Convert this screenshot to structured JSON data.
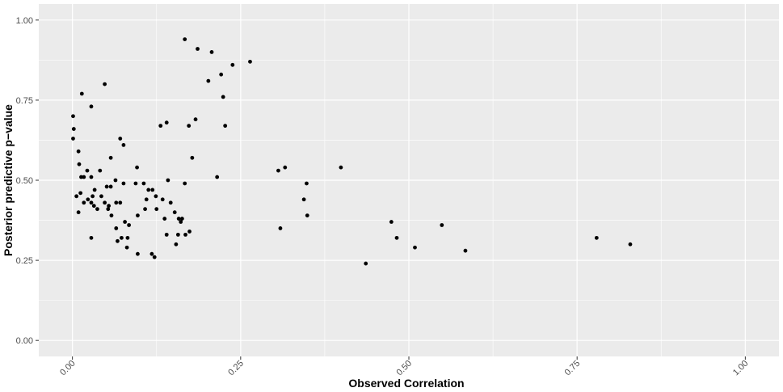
{
  "chart_data": {
    "type": "scatter",
    "title": "",
    "xlabel": "Observed Correlation",
    "ylabel": "Posterior predictive p−value",
    "xlim": [
      -0.05,
      1.05
    ],
    "ylim": [
      -0.05,
      1.05
    ],
    "x_ticks": [
      0.0,
      0.25,
      0.5,
      0.75,
      1.0
    ],
    "x_tick_labels": [
      "0.00",
      "0.25",
      "0.50",
      "0.75",
      "1.00"
    ],
    "y_ticks": [
      0.0,
      0.25,
      0.5,
      0.75,
      1.0
    ],
    "y_tick_labels": [
      "0.00",
      "0.25",
      "0.50",
      "0.75",
      "1.00"
    ],
    "grid": true,
    "colors": {
      "panel": "#ebebeb",
      "grid": "#ffffff",
      "point": "#000000"
    },
    "points": [
      {
        "x": 0.001,
        "y": 0.7
      },
      {
        "x": 0.002,
        "y": 0.66
      },
      {
        "x": 0.001,
        "y": 0.63
      },
      {
        "x": 0.009,
        "y": 0.59
      },
      {
        "x": 0.01,
        "y": 0.55
      },
      {
        "x": 0.014,
        "y": 0.77
      },
      {
        "x": 0.013,
        "y": 0.51
      },
      {
        "x": 0.017,
        "y": 0.51
      },
      {
        "x": 0.006,
        "y": 0.45
      },
      {
        "x": 0.012,
        "y": 0.46
      },
      {
        "x": 0.017,
        "y": 0.43
      },
      {
        "x": 0.009,
        "y": 0.4
      },
      {
        "x": 0.022,
        "y": 0.53
      },
      {
        "x": 0.028,
        "y": 0.51
      },
      {
        "x": 0.023,
        "y": 0.44
      },
      {
        "x": 0.028,
        "y": 0.43
      },
      {
        "x": 0.032,
        "y": 0.42
      },
      {
        "x": 0.03,
        "y": 0.45
      },
      {
        "x": 0.033,
        "y": 0.47
      },
      {
        "x": 0.037,
        "y": 0.41
      },
      {
        "x": 0.028,
        "y": 0.73
      },
      {
        "x": 0.028,
        "y": 0.32
      },
      {
        "x": 0.041,
        "y": 0.53
      },
      {
        "x": 0.043,
        "y": 0.45
      },
      {
        "x": 0.048,
        "y": 0.43
      },
      {
        "x": 0.051,
        "y": 0.48
      },
      {
        "x": 0.048,
        "y": 0.8
      },
      {
        "x": 0.053,
        "y": 0.41
      },
      {
        "x": 0.054,
        "y": 0.42
      },
      {
        "x": 0.057,
        "y": 0.48
      },
      {
        "x": 0.057,
        "y": 0.57
      },
      {
        "x": 0.058,
        "y": 0.39
      },
      {
        "x": 0.064,
        "y": 0.5
      },
      {
        "x": 0.065,
        "y": 0.43
      },
      {
        "x": 0.065,
        "y": 0.35
      },
      {
        "x": 0.067,
        "y": 0.31
      },
      {
        "x": 0.071,
        "y": 0.63
      },
      {
        "x": 0.071,
        "y": 0.43
      },
      {
        "x": 0.073,
        "y": 0.32
      },
      {
        "x": 0.076,
        "y": 0.61
      },
      {
        "x": 0.076,
        "y": 0.49
      },
      {
        "x": 0.078,
        "y": 0.37
      },
      {
        "x": 0.082,
        "y": 0.32
      },
      {
        "x": 0.081,
        "y": 0.29
      },
      {
        "x": 0.084,
        "y": 0.36
      },
      {
        "x": 0.094,
        "y": 0.49
      },
      {
        "x": 0.096,
        "y": 0.54
      },
      {
        "x": 0.097,
        "y": 0.39
      },
      {
        "x": 0.097,
        "y": 0.27
      },
      {
        "x": 0.106,
        "y": 0.49
      },
      {
        "x": 0.108,
        "y": 0.41
      },
      {
        "x": 0.11,
        "y": 0.44
      },
      {
        "x": 0.113,
        "y": 0.47
      },
      {
        "x": 0.119,
        "y": 0.47
      },
      {
        "x": 0.118,
        "y": 0.27
      },
      {
        "x": 0.122,
        "y": 0.26
      },
      {
        "x": 0.124,
        "y": 0.45
      },
      {
        "x": 0.125,
        "y": 0.41
      },
      {
        "x": 0.131,
        "y": 0.67
      },
      {
        "x": 0.134,
        "y": 0.44
      },
      {
        "x": 0.137,
        "y": 0.38
      },
      {
        "x": 0.14,
        "y": 0.68
      },
      {
        "x": 0.14,
        "y": 0.33
      },
      {
        "x": 0.142,
        "y": 0.5
      },
      {
        "x": 0.146,
        "y": 0.43
      },
      {
        "x": 0.152,
        "y": 0.4
      },
      {
        "x": 0.154,
        "y": 0.3
      },
      {
        "x": 0.157,
        "y": 0.33
      },
      {
        "x": 0.158,
        "y": 0.38
      },
      {
        "x": 0.161,
        "y": 0.37
      },
      {
        "x": 0.163,
        "y": 0.38
      },
      {
        "x": 0.167,
        "y": 0.94
      },
      {
        "x": 0.167,
        "y": 0.49
      },
      {
        "x": 0.168,
        "y": 0.33
      },
      {
        "x": 0.173,
        "y": 0.67
      },
      {
        "x": 0.174,
        "y": 0.34
      },
      {
        "x": 0.178,
        "y": 0.57
      },
      {
        "x": 0.183,
        "y": 0.69
      },
      {
        "x": 0.186,
        "y": 0.91
      },
      {
        "x": 0.202,
        "y": 0.81
      },
      {
        "x": 0.207,
        "y": 0.9
      },
      {
        "x": 0.215,
        "y": 0.51
      },
      {
        "x": 0.221,
        "y": 0.83
      },
      {
        "x": 0.224,
        "y": 0.76
      },
      {
        "x": 0.227,
        "y": 0.67
      },
      {
        "x": 0.238,
        "y": 0.86
      },
      {
        "x": 0.264,
        "y": 0.87
      },
      {
        "x": 0.306,
        "y": 0.53
      },
      {
        "x": 0.309,
        "y": 0.35
      },
      {
        "x": 0.316,
        "y": 0.54
      },
      {
        "x": 0.344,
        "y": 0.44
      },
      {
        "x": 0.348,
        "y": 0.49
      },
      {
        "x": 0.349,
        "y": 0.39
      },
      {
        "x": 0.399,
        "y": 0.54
      },
      {
        "x": 0.436,
        "y": 0.24
      },
      {
        "x": 0.474,
        "y": 0.37
      },
      {
        "x": 0.482,
        "y": 0.32
      },
      {
        "x": 0.509,
        "y": 0.29
      },
      {
        "x": 0.549,
        "y": 0.36
      },
      {
        "x": 0.584,
        "y": 0.28
      },
      {
        "x": 0.779,
        "y": 0.32
      },
      {
        "x": 0.829,
        "y": 0.3
      }
    ]
  }
}
